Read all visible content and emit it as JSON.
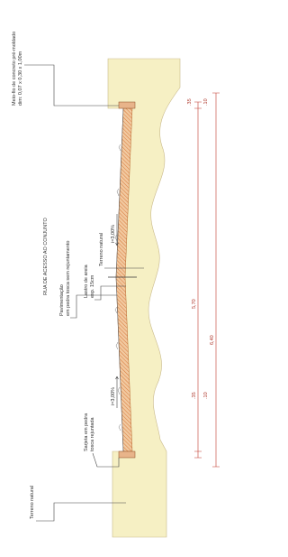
{
  "title": "RUA DE ACESSO AO CONJUNTO",
  "labels": {
    "curb": [
      "Meio-fio de concreto pré-moldado",
      "dim: 0,07 x 0,30 x 1,00m"
    ],
    "paving": [
      "Pavimentação",
      "em pedra tosca sem rejuntamento"
    ],
    "sand": [
      "Lastro de areia",
      "esp. 15cm"
    ],
    "terrain_mid": "Terreno natural",
    "slope_right": "i=3,00%",
    "slope_left": "i=3,00%",
    "gutter": [
      "Sarjeta em pedra",
      "tosca rejuntada"
    ],
    "terrain_left": "Terreno natural"
  },
  "dimensions": {
    "right_outer": ".35",
    "right_inner": ".10",
    "inner": "5,70",
    "outer": "6,40",
    "left_outer": ".35",
    "left_inner": ".10"
  }
}
